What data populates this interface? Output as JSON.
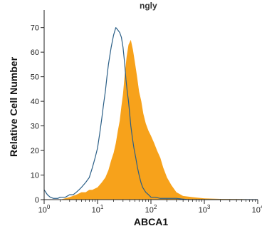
{
  "chart_data": {
    "type": "area",
    "top_fragment": "ngly",
    "xlabel": "ABCA1",
    "ylabel": "Relative Cell Number",
    "x_scale": "log",
    "xlim": [
      1,
      10000
    ],
    "ylim": [
      0,
      76
    ],
    "y_ticks": [
      0,
      10,
      20,
      30,
      40,
      50,
      60,
      70
    ],
    "x_ticks": [
      {
        "value": 1,
        "base": "10",
        "exp": "0"
      },
      {
        "value": 10,
        "base": "10",
        "exp": "1"
      },
      {
        "value": 100,
        "base": "10",
        "exp": "2"
      },
      {
        "value": 1000,
        "base": "10",
        "exp": "3"
      },
      {
        "value": 10000,
        "base": "10",
        "exp": "4"
      }
    ],
    "grid": false,
    "colors": {
      "filled": "#f7a21b",
      "outline": "#2b5f87",
      "axis": "#222222"
    },
    "series": [
      {
        "style": "filled",
        "x": [
          1,
          1.5,
          2,
          3,
          4,
          5,
          6,
          7,
          8,
          10,
          12,
          14,
          16,
          18,
          20,
          22,
          24,
          26,
          28,
          30,
          32,
          35,
          38,
          42,
          46,
          50,
          55,
          60,
          66,
          72,
          80,
          90,
          100,
          115,
          130,
          150,
          170,
          200,
          240,
          300,
          400,
          600,
          1000,
          2000,
          5000,
          10000
        ],
        "y": [
          0,
          0,
          0,
          1,
          2,
          3,
          3,
          4,
          4,
          5,
          7,
          9,
          12,
          16,
          19,
          23,
          28,
          32,
          38,
          43,
          50,
          58,
          63,
          65,
          61,
          56,
          50,
          44,
          40,
          35,
          31,
          28,
          26,
          23,
          20,
          17,
          13,
          9,
          6,
          3,
          1.5,
          1,
          0.5,
          0.3,
          0.2,
          0
        ]
      },
      {
        "style": "outline",
        "x": [
          1,
          1.15,
          1.3,
          1.5,
          1.8,
          2,
          2.5,
          3,
          3.5,
          4,
          4.5,
          5,
          6,
          7,
          8,
          9,
          10,
          11,
          12,
          13,
          14,
          15,
          16,
          18,
          20,
          22,
          24,
          26,
          28,
          30,
          32,
          34,
          36,
          38,
          40,
          42,
          45,
          48,
          52,
          56,
          60,
          65,
          70,
          80,
          90,
          100,
          120,
          150,
          200,
          300,
          500,
          1000,
          2000,
          5000,
          10000
        ],
        "y": [
          4,
          2,
          1,
          0.5,
          0.5,
          1,
          1,
          2,
          2,
          3,
          4,
          5,
          7,
          9,
          13,
          17,
          21,
          27,
          33,
          39,
          44,
          50,
          55,
          62,
          67,
          70,
          69,
          68,
          66,
          62,
          56,
          49,
          44,
          40,
          35,
          30,
          25,
          21,
          17,
          13,
          10,
          7,
          5,
          3,
          2,
          1,
          1,
          0.5,
          0.5,
          0.5,
          0,
          0,
          0,
          0,
          0
        ]
      }
    ]
  }
}
